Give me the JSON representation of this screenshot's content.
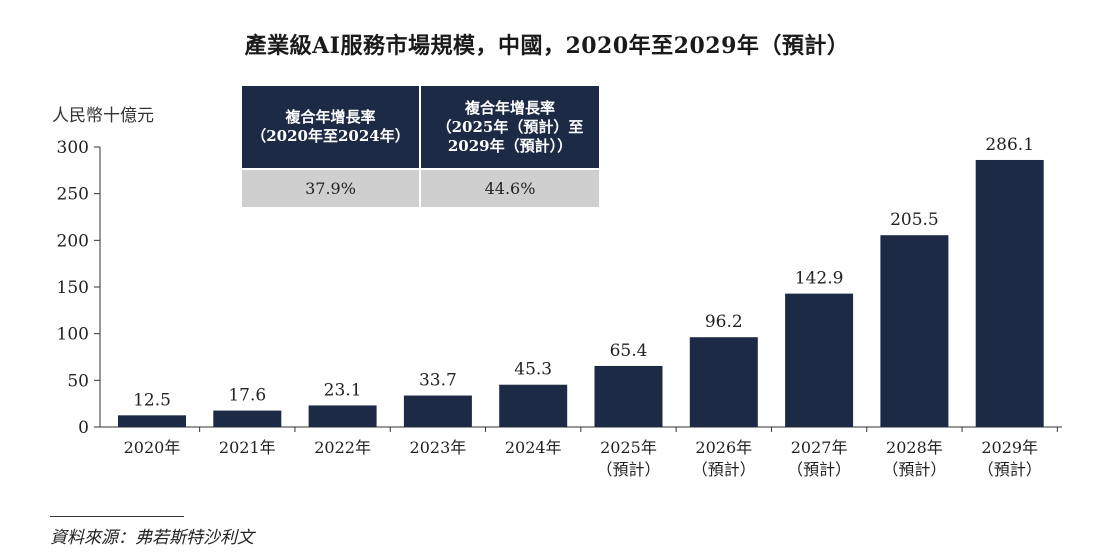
{
  "title": "產業級AI服務市場規模，中國，2020年至2029年（預計）",
  "unit_label": "人民幣十億元",
  "cagr_table": {
    "headers": [
      [
        "複合年增長率",
        "（2020年至2024年）"
      ],
      [
        "複合年增長率",
        "（2025年（預計）至",
        "2029年（預計））"
      ]
    ],
    "values": [
      "37.9%",
      "44.6%"
    ]
  },
  "source": "資料來源：弗若斯特沙利文",
  "colors": {
    "bar": "#1d2a45",
    "table_header": "#1d2a45",
    "table_value": "#cfcfcf"
  },
  "chart_data": {
    "type": "bar",
    "categories": [
      [
        "2020年"
      ],
      [
        "2021年"
      ],
      [
        "2022年"
      ],
      [
        "2023年"
      ],
      [
        "2024年"
      ],
      [
        "2025年",
        "（預計）"
      ],
      [
        "2026年",
        "（預計）"
      ],
      [
        "2027年",
        "（預計）"
      ],
      [
        "2028年",
        "（預計）"
      ],
      [
        "2029年",
        "（預計）"
      ]
    ],
    "values": [
      12.5,
      17.6,
      23.1,
      33.7,
      45.3,
      65.4,
      96.2,
      142.9,
      205.5,
      286.1
    ],
    "value_labels": [
      "12.5",
      "17.6",
      "23.1",
      "33.7",
      "45.3",
      "65.4",
      "96.2",
      "142.9",
      "205.5",
      "286.1"
    ],
    "ylim": [
      0,
      300
    ],
    "yticks": [
      0,
      50,
      100,
      150,
      200,
      250,
      300
    ],
    "grid": false,
    "legend": "none"
  }
}
